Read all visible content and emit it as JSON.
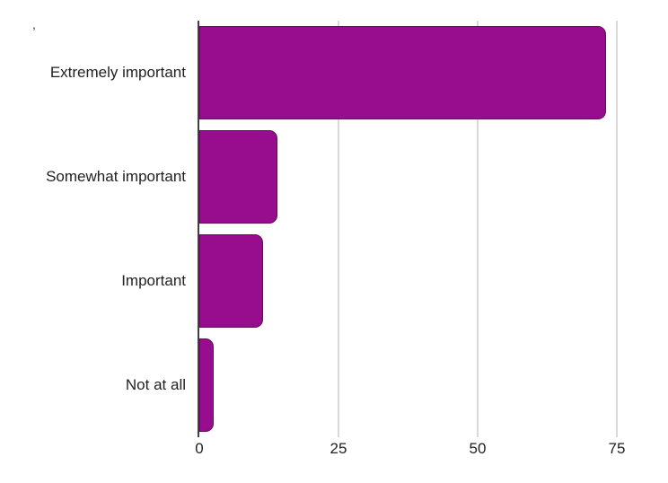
{
  "chart_data": {
    "type": "bar",
    "orientation": "horizontal",
    "title": ",",
    "xlabel": "",
    "ylabel": "",
    "categories": [
      "Extremely important",
      "Somewhat important",
      "Important",
      "Not at all"
    ],
    "values": [
      73,
      14,
      11.5,
      2.5
    ],
    "xticks": [
      0,
      25,
      50,
      75
    ],
    "xlim": [
      0,
      80
    ],
    "grid": "vertical-only",
    "legend": "none",
    "data_labels": "none"
  },
  "colors": {
    "bar_fill": "#980D8D",
    "bar_border": "#6B0A63",
    "gridline": "#D9D9D9",
    "axis_line": "#3F3F3F",
    "text": "#212121",
    "background": "#FFFFFF"
  }
}
